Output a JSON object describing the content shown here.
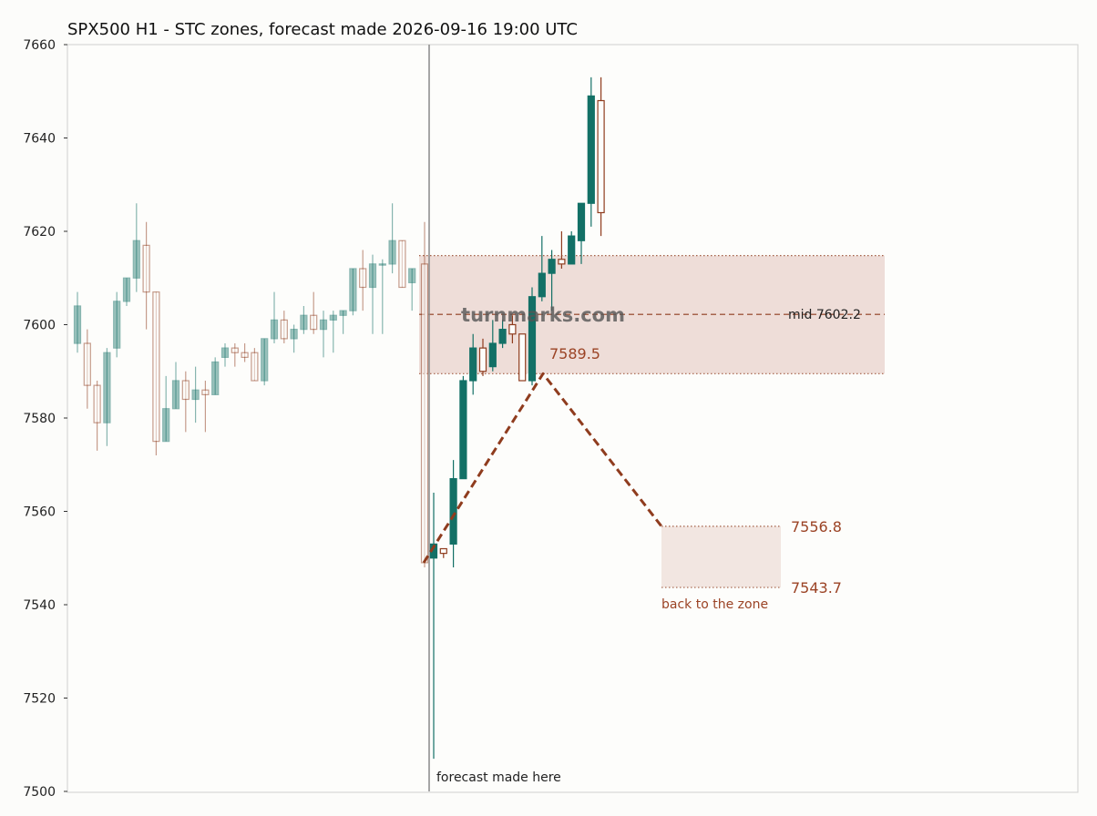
{
  "chart_data": {
    "type": "candlestick",
    "title": "SPX500 H1 - STC zones, forecast made 2026-09-16 19:00 UTC",
    "ylim": [
      7500,
      7660
    ],
    "yticks": [
      7500,
      7520,
      7540,
      7560,
      7580,
      7600,
      7620,
      7640,
      7660
    ],
    "grid": false,
    "watermark": "turnmarks.com",
    "colors": {
      "bull": "#137066",
      "bear": "#8f3c1e",
      "zone_fill": "#eeddd8",
      "path": "#8f3c1e",
      "annotation": "#9b4325"
    },
    "forecast_marker": {
      "label": "forecast made here"
    },
    "history_candles": [
      {
        "o": 7596,
        "h": 7607,
        "l": 7594,
        "c": 7604
      },
      {
        "o": 7596,
        "h": 7599,
        "l": 7582,
        "c": 7587
      },
      {
        "o": 7587,
        "h": 7588,
        "l": 7573,
        "c": 7579
      },
      {
        "o": 7579,
        "h": 7595,
        "l": 7574,
        "c": 7594
      },
      {
        "o": 7595,
        "h": 7607,
        "l": 7593,
        "c": 7605
      },
      {
        "o": 7605,
        "h": 7610,
        "l": 7604,
        "c": 7610
      },
      {
        "o": 7610,
        "h": 7626,
        "l": 7607,
        "c": 7618
      },
      {
        "o": 7617,
        "h": 7622,
        "l": 7599,
        "c": 7607
      },
      {
        "o": 7607,
        "h": 7607,
        "l": 7572,
        "c": 7575
      },
      {
        "o": 7575,
        "h": 7589,
        "l": 7575,
        "c": 7582
      },
      {
        "o": 7582,
        "h": 7592,
        "l": 7582,
        "c": 7588
      },
      {
        "o": 7588,
        "h": 7590,
        "l": 7577,
        "c": 7584
      },
      {
        "o": 7584,
        "h": 7591,
        "l": 7579,
        "c": 7586
      },
      {
        "o": 7586,
        "h": 7588,
        "l": 7577,
        "c": 7585
      },
      {
        "o": 7585,
        "h": 7593,
        "l": 7585,
        "c": 7592
      },
      {
        "o": 7593,
        "h": 7596,
        "l": 7591,
        "c": 7595
      },
      {
        "o": 7595,
        "h": 7596,
        "l": 7591,
        "c": 7594
      },
      {
        "o": 7594,
        "h": 7596,
        "l": 7592,
        "c": 7593
      },
      {
        "o": 7594,
        "h": 7595,
        "l": 7588,
        "c": 7588
      },
      {
        "o": 7588,
        "h": 7597,
        "l": 7587,
        "c": 7597
      },
      {
        "o": 7597,
        "h": 7607,
        "l": 7596,
        "c": 7601
      },
      {
        "o": 7601,
        "h": 7603,
        "l": 7596,
        "c": 7597
      },
      {
        "o": 7597,
        "h": 7600,
        "l": 7594,
        "c": 7599
      },
      {
        "o": 7599,
        "h": 7604,
        "l": 7598,
        "c": 7602
      },
      {
        "o": 7602,
        "h": 7607,
        "l": 7598,
        "c": 7599
      },
      {
        "o": 7599,
        "h": 7603,
        "l": 7593,
        "c": 7601
      },
      {
        "o": 7601,
        "h": 7603,
        "l": 7594,
        "c": 7602
      },
      {
        "o": 7602,
        "h": 7603,
        "l": 7598,
        "c": 7603
      },
      {
        "o": 7603,
        "h": 7612,
        "l": 7602,
        "c": 7612
      },
      {
        "o": 7612,
        "h": 7616,
        "l": 7603,
        "c": 7608
      },
      {
        "o": 7608,
        "h": 7615,
        "l": 7598,
        "c": 7613
      },
      {
        "o": 7613,
        "h": 7614,
        "l": 7598,
        "c": 7613
      },
      {
        "o": 7613,
        "h": 7626,
        "l": 7611,
        "c": 7618
      },
      {
        "o": 7618,
        "h": 7618,
        "l": 7608,
        "c": 7608
      },
      {
        "o": 7609,
        "h": 7612,
        "l": 7603,
        "c": 7612
      },
      {
        "o": 7613,
        "h": 7622,
        "l": 7548,
        "c": 7549
      }
    ],
    "forecast_candles": [
      {
        "o": 7550,
        "h": 7564,
        "l": 7507,
        "c": 7553
      },
      {
        "o": 7552,
        "h": 7552,
        "l": 7550,
        "c": 7551
      },
      {
        "o": 7553,
        "h": 7571,
        "l": 7548,
        "c": 7567
      },
      {
        "o": 7567,
        "h": 7589,
        "l": 7567,
        "c": 7588
      },
      {
        "o": 7588,
        "h": 7598,
        "l": 7585,
        "c": 7595
      },
      {
        "o": 7595,
        "h": 7597,
        "l": 7589,
        "c": 7590
      },
      {
        "o": 7591,
        "h": 7601,
        "l": 7590,
        "c": 7596
      },
      {
        "o": 7596,
        "h": 7601,
        "l": 7595,
        "c": 7599
      },
      {
        "o": 7600,
        "h": 7602,
        "l": 7596,
        "c": 7598
      },
      {
        "o": 7598,
        "h": 7598,
        "l": 7588,
        "c": 7588
      },
      {
        "o": 7588,
        "h": 7608,
        "l": 7587,
        "c": 7606
      },
      {
        "o": 7606,
        "h": 7619,
        "l": 7605,
        "c": 7611
      },
      {
        "o": 7611,
        "h": 7616,
        "l": 7603,
        "c": 7614
      },
      {
        "o": 7614,
        "h": 7620,
        "l": 7612,
        "c": 7613
      },
      {
        "o": 7613,
        "h": 7620,
        "l": 7613,
        "c": 7619
      },
      {
        "o": 7618,
        "h": 7626,
        "l": 7613,
        "c": 7626
      },
      {
        "o": 7626,
        "h": 7653,
        "l": 7621,
        "c": 7649
      },
      {
        "o": 7648,
        "h": 7653,
        "l": 7619,
        "c": 7624
      }
    ],
    "zones": [
      {
        "name": "upper",
        "top": 7614.8,
        "bottom": 7589.5,
        "mid": 7602.2,
        "mid_label": "mid 7602.2",
        "bottom_label": "7589.5"
      },
      {
        "name": "lower",
        "top": 7556.8,
        "bottom": 7543.7,
        "top_label": "7556.8",
        "bottom_label": "7543.7",
        "caption": "back to the zone"
      }
    ],
    "forecast_path": [
      {
        "step": 0,
        "y": 7549
      },
      {
        "step": 12,
        "y": 7589.5
      },
      {
        "step": 25,
        "y": 7556.8
      }
    ]
  }
}
